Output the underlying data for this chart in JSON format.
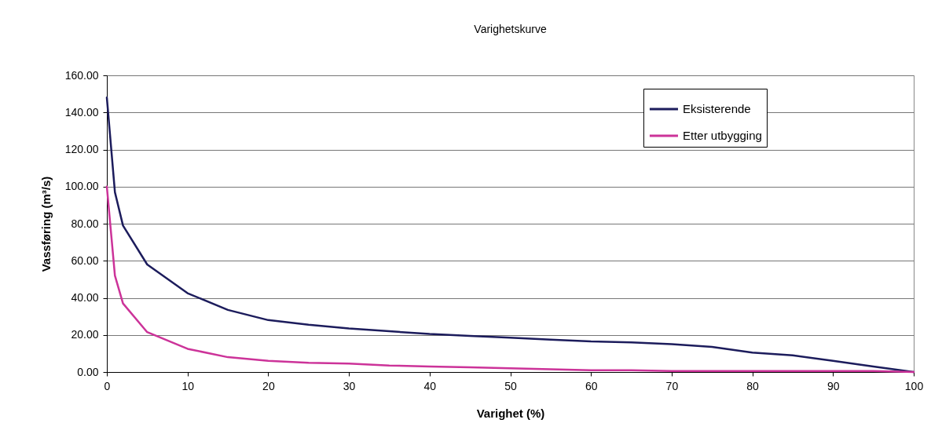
{
  "chart_data": {
    "type": "line",
    "title": "Varighetskurve",
    "xlabel": "Varighet (%)",
    "ylabel": "Vassføring (m³/s)",
    "x": [
      0,
      1,
      2,
      5,
      10,
      15,
      20,
      25,
      30,
      35,
      40,
      45,
      50,
      55,
      60,
      65,
      70,
      75,
      80,
      85,
      90,
      95,
      100
    ],
    "series": [
      {
        "name": "Eksisterende",
        "color": "#1c1c5c",
        "values": [
          148,
          97,
          79,
          58,
          42.5,
          33.5,
          28,
          25.5,
          23.5,
          22,
          20.5,
          19.5,
          18.5,
          17.5,
          16.5,
          16,
          15,
          13.5,
          10.5,
          9,
          6,
          3,
          0
        ]
      },
      {
        "name": "Etter utbygging",
        "color": "#cc3399",
        "values": [
          100,
          52,
          37,
          21.5,
          12.5,
          8,
          6,
          5,
          4.5,
          3.5,
          3,
          2.5,
          2,
          1.5,
          1,
          1,
          0.5,
          0.5,
          0.5,
          0.5,
          0.5,
          0.5,
          0
        ]
      }
    ],
    "xlim": [
      0,
      100
    ],
    "xticks": [
      0,
      10,
      20,
      30,
      40,
      50,
      60,
      70,
      80,
      90,
      100
    ],
    "ylim": [
      0,
      160
    ],
    "yticks": [
      {
        "value": 0,
        "label": "0.00"
      },
      {
        "value": 20,
        "label": "20.00"
      },
      {
        "value": 40,
        "label": "40.00"
      },
      {
        "value": 60,
        "label": "60.00"
      },
      {
        "value": 80,
        "label": "80.00"
      },
      {
        "value": 100,
        "label": "100.00"
      },
      {
        "value": 120,
        "label": "120.00"
      },
      {
        "value": 140,
        "label": "140.00"
      },
      {
        "value": 160,
        "label": "160.00"
      }
    ],
    "grid": "y",
    "legend": "top right"
  }
}
